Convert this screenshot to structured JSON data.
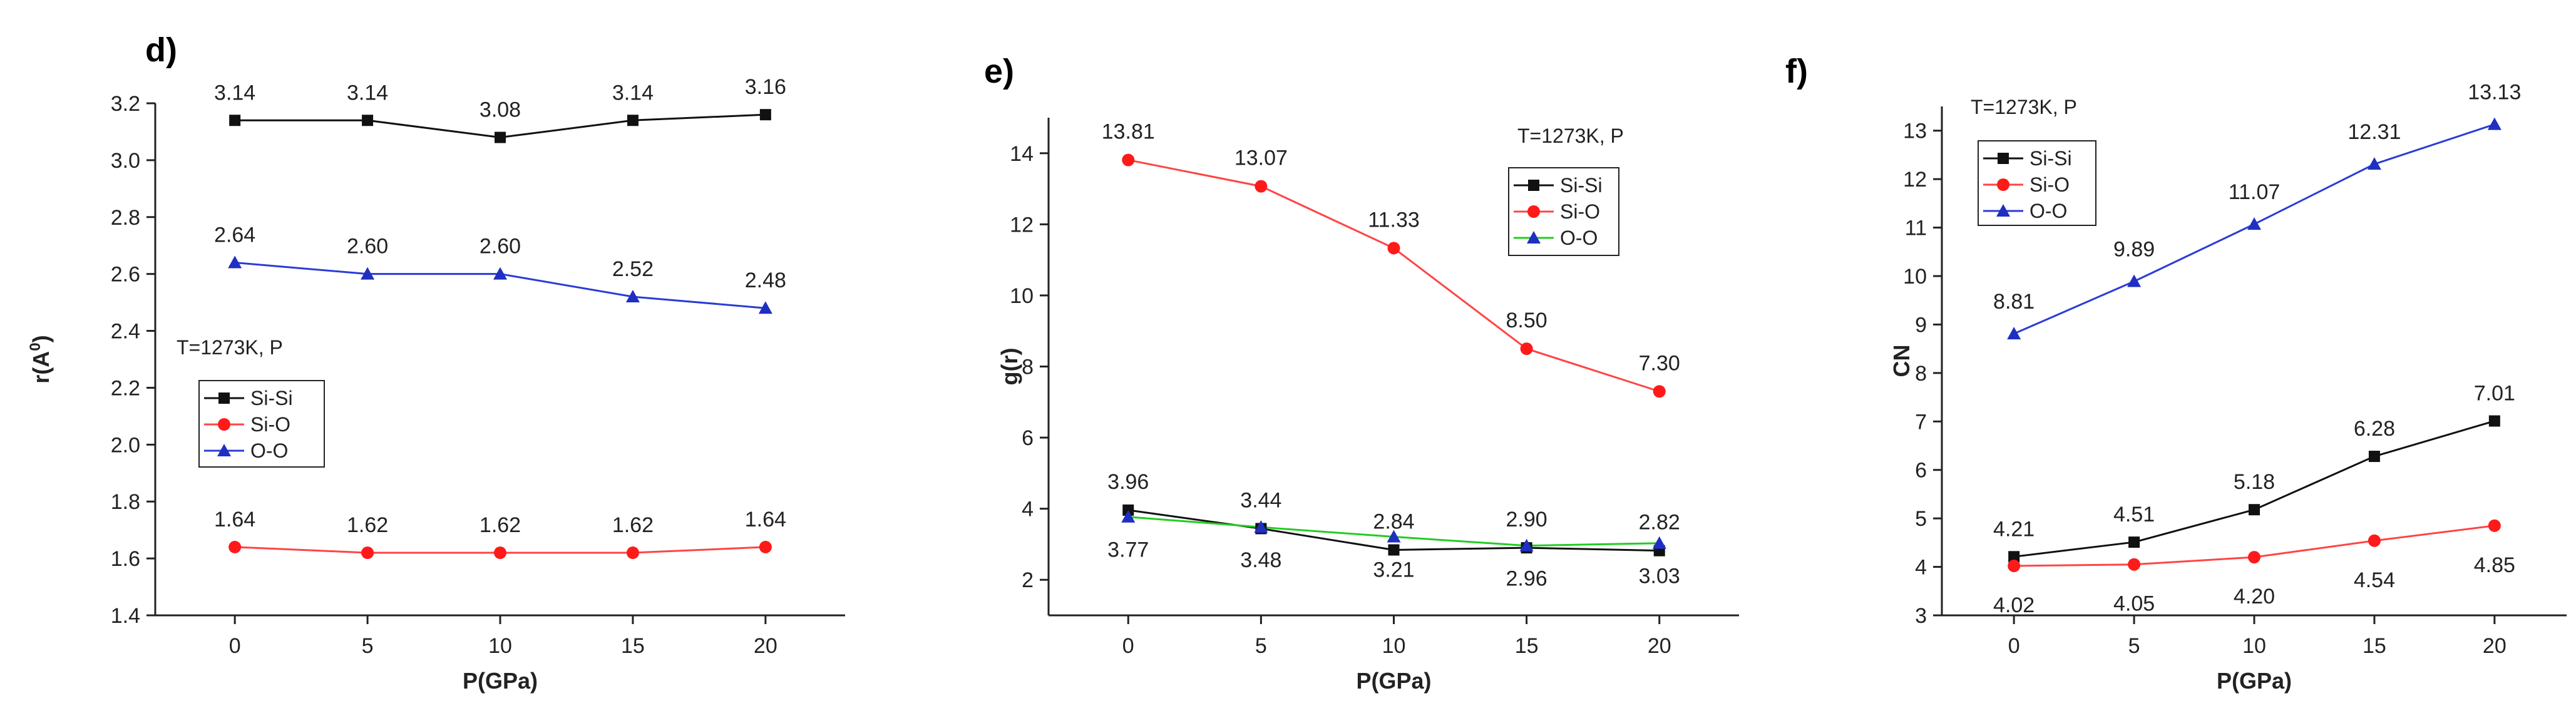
{
  "figure": {
    "colors": {
      "si_si": "#111111",
      "si_o_line": "#ff4444",
      "si_o_marker": "#ff1a1a",
      "o_o": "#2b3bd6",
      "o_o_marker": "#1f2fc2",
      "o_o_green": "#22cc22",
      "axis": "#222222"
    }
  },
  "chart_data": [
    {
      "panel": "d)",
      "type": "line",
      "title": "",
      "xlabel": "P(GPa)",
      "ylabel": "r(A0)",
      "ylabel_main": "r(A",
      "ylabel_sup": "0",
      "ylabel_close": ")",
      "x": [
        0,
        5,
        10,
        15,
        20
      ],
      "xticks": [
        "0",
        "5",
        "10",
        "15",
        "20"
      ],
      "xlim": [
        -3,
        23
      ],
      "ylim": [
        1.4,
        3.2
      ],
      "yticks": [
        "1.4",
        "1.6",
        "1.8",
        "2.0",
        "2.2",
        "2.4",
        "2.6",
        "2.8",
        "3.0",
        "3.2"
      ],
      "condition": "T=1273K, P",
      "legend": [
        "Si-Si",
        "Si-O",
        "O-O"
      ],
      "series": [
        {
          "name": "Si-Si",
          "values": [
            3.14,
            3.14,
            3.08,
            3.14,
            3.16
          ],
          "labels": [
            "3.14",
            "3.14",
            "3.08",
            "3.14",
            "3.16"
          ]
        },
        {
          "name": "Si-O",
          "values": [
            1.64,
            1.62,
            1.62,
            1.62,
            1.64
          ],
          "labels": [
            "1.64",
            "1.62",
            "1.62",
            "1.62",
            "1.64"
          ]
        },
        {
          "name": "O-O",
          "values": [
            2.64,
            2.6,
            2.6,
            2.52,
            2.48
          ],
          "labels": [
            "2.64",
            "2.60",
            "2.60",
            "2.52",
            "2.48"
          ]
        }
      ]
    },
    {
      "panel": "e)",
      "type": "line",
      "title": "",
      "xlabel": "P(GPa)",
      "ylabel": "g(r)",
      "x": [
        0,
        5,
        10,
        15,
        20
      ],
      "xticks": [
        "0",
        "5",
        "10",
        "15",
        "20"
      ],
      "xlim": [
        -3,
        23
      ],
      "ylim": [
        1,
        15
      ],
      "yticks": [
        "2",
        "4",
        "6",
        "8",
        "10",
        "12",
        "14"
      ],
      "condition": "T=1273K, P",
      "legend": [
        "Si-Si",
        "Si-O",
        "O-O"
      ],
      "series": [
        {
          "name": "Si-Si",
          "values": [
            3.96,
            3.44,
            2.84,
            2.9,
            2.82
          ],
          "labels": [
            "3.96",
            "3.44",
            "2.84",
            "2.90",
            "2.82"
          ]
        },
        {
          "name": "Si-O",
          "values": [
            13.81,
            13.07,
            11.33,
            8.5,
            7.3
          ],
          "labels": [
            "13.81",
            "13.07",
            "11.33",
            "8.50",
            "7.30"
          ]
        },
        {
          "name": "O-O",
          "values": [
            3.77,
            3.48,
            3.21,
            2.96,
            3.03
          ],
          "labels": [
            "3.77",
            "3.48",
            "3.21",
            "2.96",
            "3.03"
          ]
        }
      ]
    },
    {
      "panel": "f)",
      "type": "line",
      "title": "",
      "xlabel": "P(GPa)",
      "ylabel": "CN",
      "x": [
        0,
        5,
        10,
        15,
        20
      ],
      "xticks": [
        "0",
        "5",
        "10",
        "15",
        "20"
      ],
      "xlim": [
        -3,
        23
      ],
      "ylim": [
        3,
        13.5
      ],
      "yticks": [
        "3",
        "4",
        "5",
        "6",
        "7",
        "8",
        "9",
        "10",
        "11",
        "12",
        "13"
      ],
      "condition": "T=1273K, P",
      "legend": [
        "Si-Si",
        "Si-O",
        "O-O"
      ],
      "series": [
        {
          "name": "Si-Si",
          "values": [
            4.21,
            4.51,
            5.18,
            6.28,
            7.01
          ],
          "labels": [
            "4.21",
            "4.51",
            "5.18",
            "6.28",
            "7.01"
          ]
        },
        {
          "name": "Si-O",
          "values": [
            4.02,
            4.05,
            4.2,
            4.54,
            4.85
          ],
          "labels": [
            "4.02",
            "4.05",
            "4.20",
            "4.54",
            "4.85"
          ]
        },
        {
          "name": "O-O",
          "values": [
            8.81,
            9.89,
            11.07,
            12.31,
            13.13
          ],
          "labels": [
            "8.81",
            "9.89",
            "11.07",
            "12.31",
            "13.13"
          ]
        }
      ]
    }
  ]
}
